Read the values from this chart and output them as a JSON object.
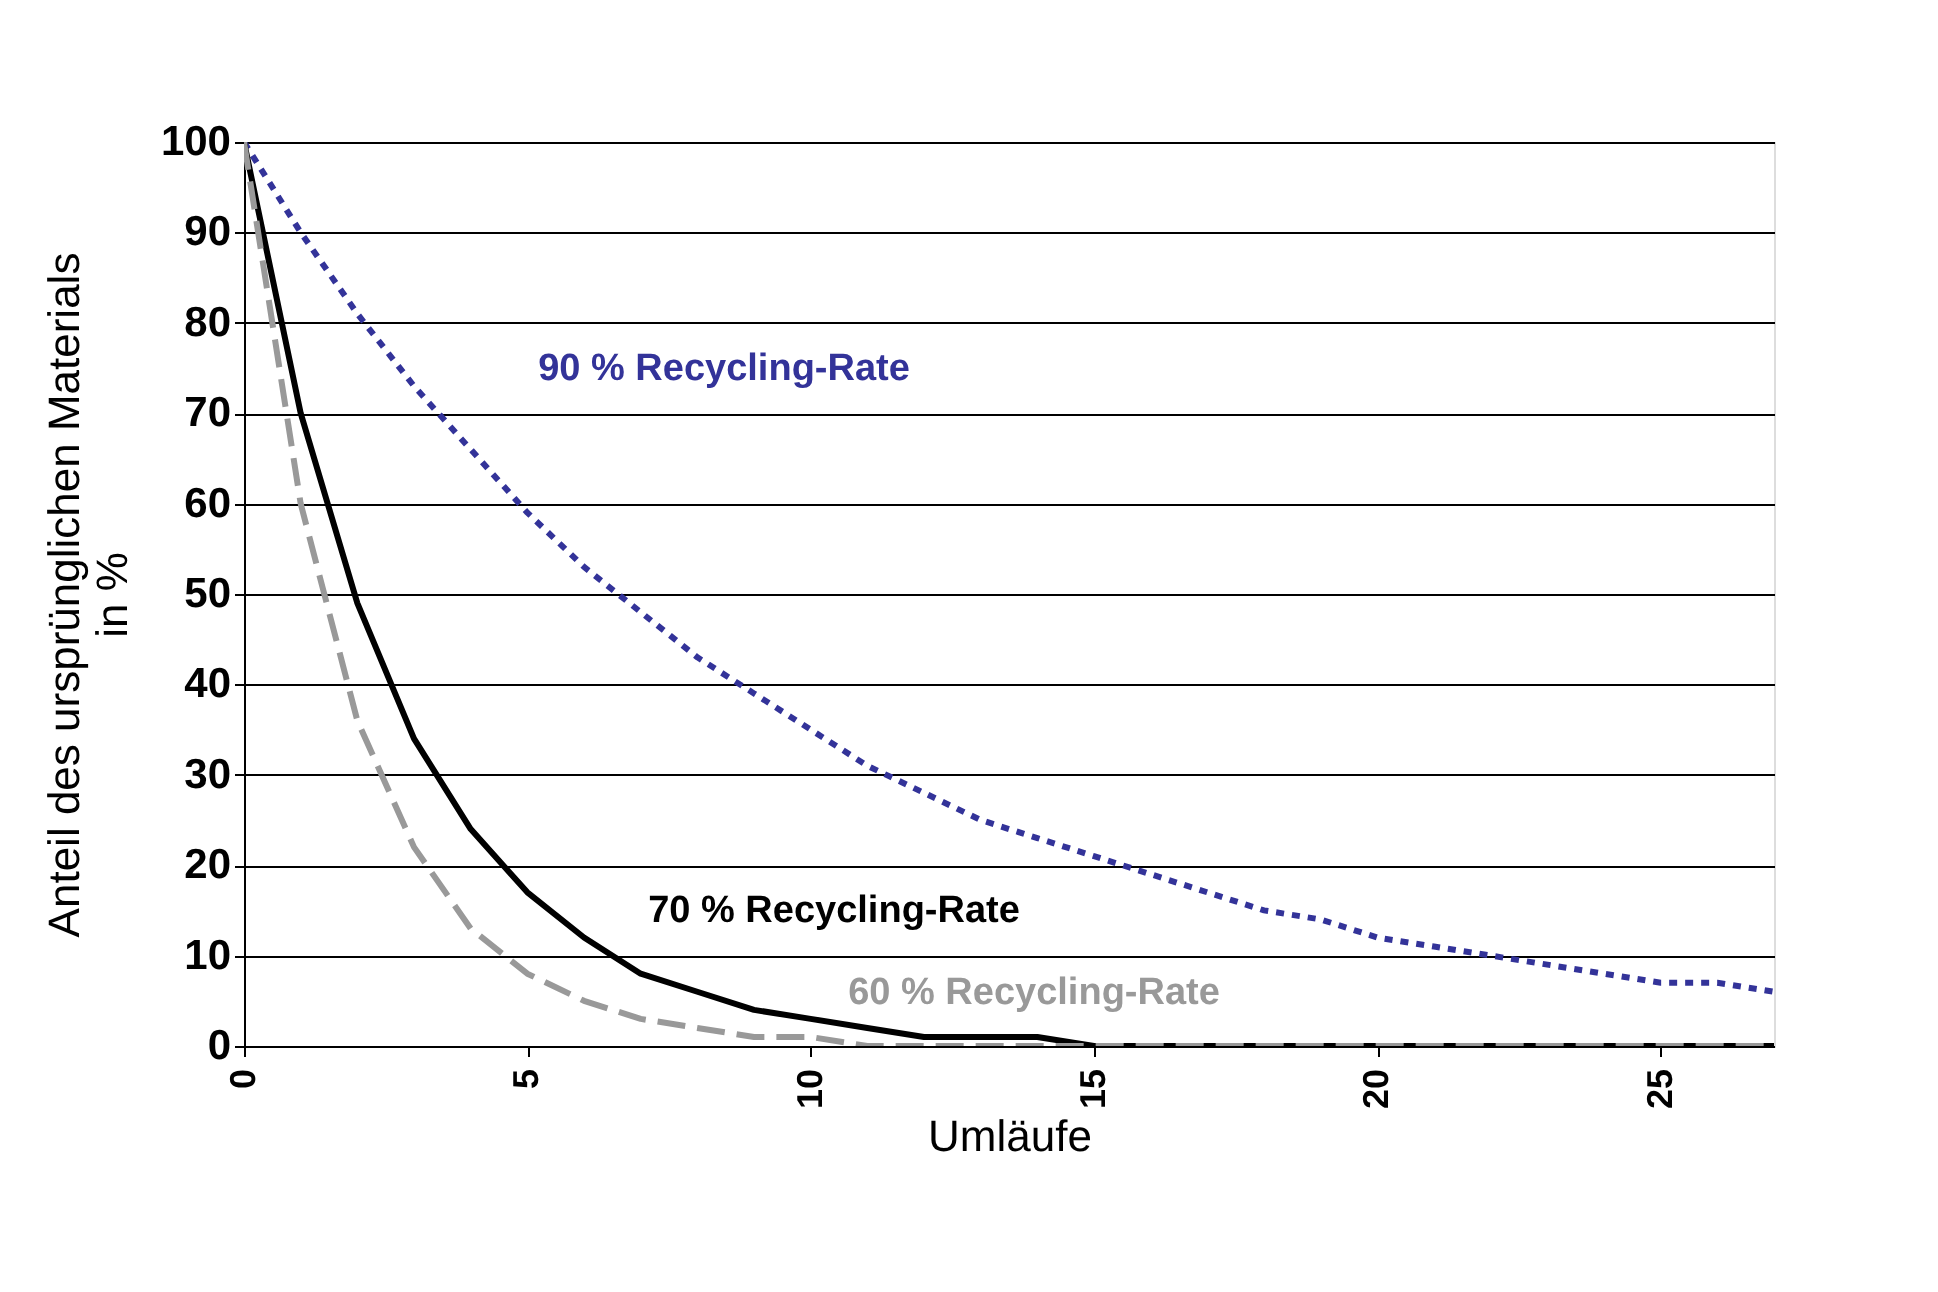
{
  "chart_data": {
    "type": "line",
    "xlabel": "Umläufe",
    "ylabel": "Anteil des ursprünglichen Materials\nin %",
    "x": [
      0,
      1,
      2,
      3,
      4,
      5,
      6,
      7,
      8,
      9,
      10,
      11,
      12,
      13,
      14,
      15,
      16,
      17,
      18,
      19,
      20,
      21,
      22,
      23,
      24,
      25,
      26,
      27
    ],
    "series": [
      {
        "name": "90 % Recycling-Rate",
        "color": "#333399",
        "line_style": "dotted",
        "values": [
          100,
          90,
          81,
          73,
          66,
          59,
          53,
          48,
          43,
          39,
          35,
          31,
          28,
          25,
          23,
          21,
          19,
          17,
          15,
          14,
          12,
          11,
          10,
          9,
          8,
          7,
          7,
          6
        ]
      },
      {
        "name": "70 % Recycling-Rate",
        "color": "#000000",
        "line_style": "solid",
        "values": [
          100,
          70,
          49,
          34,
          24,
          17,
          12,
          8,
          6,
          4,
          3,
          2,
          1,
          1,
          1,
          0,
          0,
          0,
          0,
          0,
          0,
          0,
          0,
          0,
          0,
          0,
          0,
          0
        ]
      },
      {
        "name": "60 % Recycling-Rate",
        "color": "#999999",
        "line_style": "dashed",
        "values": [
          100,
          60,
          36,
          22,
          13,
          8,
          5,
          3,
          2,
          1,
          1,
          0,
          0,
          0,
          0,
          0,
          0,
          0,
          0,
          0,
          0,
          0,
          0,
          0,
          0,
          0,
          0,
          0
        ]
      }
    ],
    "xlim": [
      0,
      27
    ],
    "xticks": [
      0,
      5,
      10,
      15,
      20,
      25
    ],
    "ylim": [
      0,
      100
    ],
    "yticks": [
      0,
      10,
      20,
      30,
      40,
      50,
      60,
      70,
      80,
      90,
      100
    ],
    "grid": "y",
    "marker": "none"
  }
}
